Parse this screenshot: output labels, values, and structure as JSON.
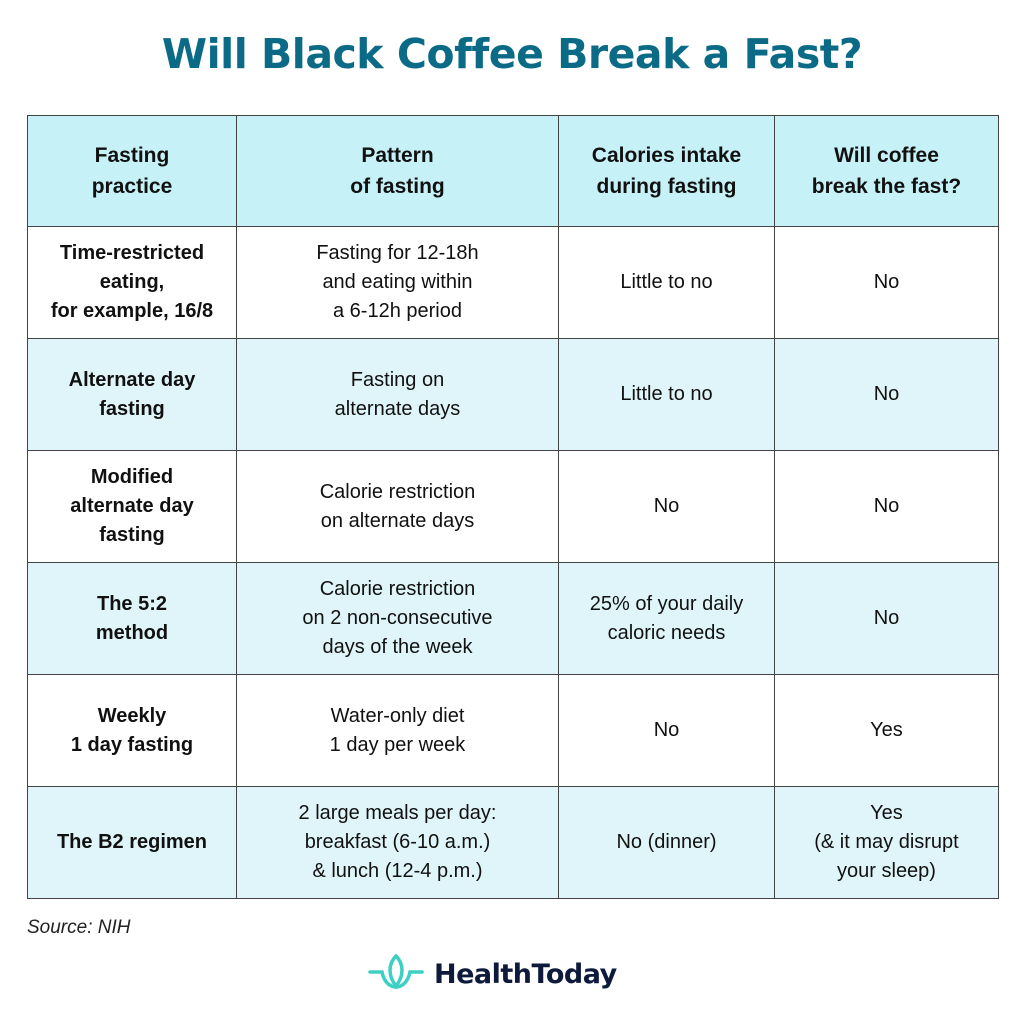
{
  "title": "Will Black Coffee Break a Fast?",
  "table": {
    "headers": [
      {
        "line1": "Fasting",
        "line2": "practice"
      },
      {
        "line1": "Pattern",
        "line2": "of fasting"
      },
      {
        "line1": "Calories intake",
        "line2": "during fasting"
      },
      {
        "line1": "Will coffee",
        "line2": "break the fast?"
      }
    ],
    "rows": [
      {
        "practice": [
          "Time-restricted",
          "eating,",
          "for example, 16/8"
        ],
        "pattern": [
          "Fasting for 12-18h",
          "and eating within",
          "a 6-12h period"
        ],
        "calories": [
          "Little to no"
        ],
        "coffee": [
          "No"
        ]
      },
      {
        "practice": [
          "Alternate day",
          "fasting"
        ],
        "pattern": [
          "Fasting on",
          "alternate days"
        ],
        "calories": [
          "Little to no"
        ],
        "coffee": [
          "No"
        ]
      },
      {
        "practice": [
          "Modified",
          "alternate day",
          "fasting"
        ],
        "pattern": [
          "Calorie restriction",
          "on alternate days"
        ],
        "calories": [
          "No"
        ],
        "coffee": [
          "No"
        ]
      },
      {
        "practice": [
          "The 5:2",
          "method"
        ],
        "pattern": [
          "Calorie restriction",
          "on 2 non-consecutive",
          "days of the week"
        ],
        "calories": [
          "25% of your daily",
          "caloric needs"
        ],
        "coffee": [
          "No"
        ]
      },
      {
        "practice": [
          "Weekly",
          "1 day fasting"
        ],
        "pattern": [
          "Water-only diet",
          "1 day per week"
        ],
        "calories": [
          "No"
        ],
        "coffee": [
          "Yes"
        ]
      },
      {
        "practice": [
          "The B2 regimen"
        ],
        "pattern": [
          "2 large meals per day:",
          "breakfast (6-10 a.m.)",
          "& lunch (12-4 p.m.)"
        ],
        "calories": [
          "No (dinner)"
        ],
        "coffee": [
          "Yes",
          "(& it may disrupt",
          "your sleep)"
        ]
      }
    ]
  },
  "source": "Source: NIH",
  "logo": {
    "text": "HealthToday",
    "icon": "lotus-icon"
  },
  "colors": {
    "title": "#0b6b86",
    "header_bg": "#c6f1f7",
    "row_alt_bg": "#e0f5f9",
    "logo_icon": "#3ecfc4",
    "logo_text": "#0e1a3c"
  }
}
